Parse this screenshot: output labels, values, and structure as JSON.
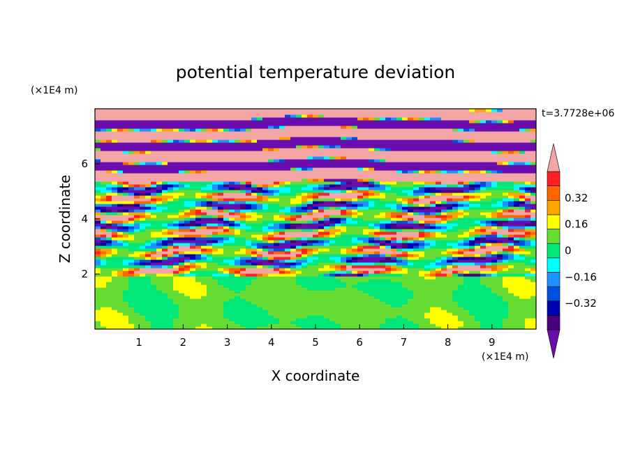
{
  "chart_data": {
    "type": "heatmap",
    "title": "potential temperature deviation",
    "xlabel": "X coordinate",
    "ylabel": "Z coordinate",
    "x_unit": "(×1E4 m)",
    "y_unit": "(×1E4 m)",
    "time_label": "t=3.7728e+06",
    "xlim": [
      0,
      10
    ],
    "ylim": [
      0,
      8
    ],
    "x_ticks": [
      1,
      2,
      3,
      4,
      5,
      6,
      7,
      8,
      9
    ],
    "y_ticks": [
      2,
      4,
      6
    ],
    "colorbar": {
      "levels": [
        -0.48,
        -0.4,
        -0.32,
        -0.24,
        -0.16,
        -0.08,
        0,
        0.08,
        0.16,
        0.24,
        0.32,
        0.4,
        0.48
      ],
      "tick_values": [
        0.32,
        0.16,
        0,
        -0.16,
        -0.32
      ],
      "tick_labels": [
        "0.32",
        "0.16",
        "0",
        "−0.16",
        "−0.32"
      ],
      "colors": [
        "#6a0dad",
        "#4b0082",
        "#0000b0",
        "#0050e0",
        "#1e90ff",
        "#00ffff",
        "#00e77a",
        "#66dd33",
        "#ffff00",
        "#ffa500",
        "#ff6600",
        "#ff2020",
        "#f4a6a6"
      ]
    }
  }
}
